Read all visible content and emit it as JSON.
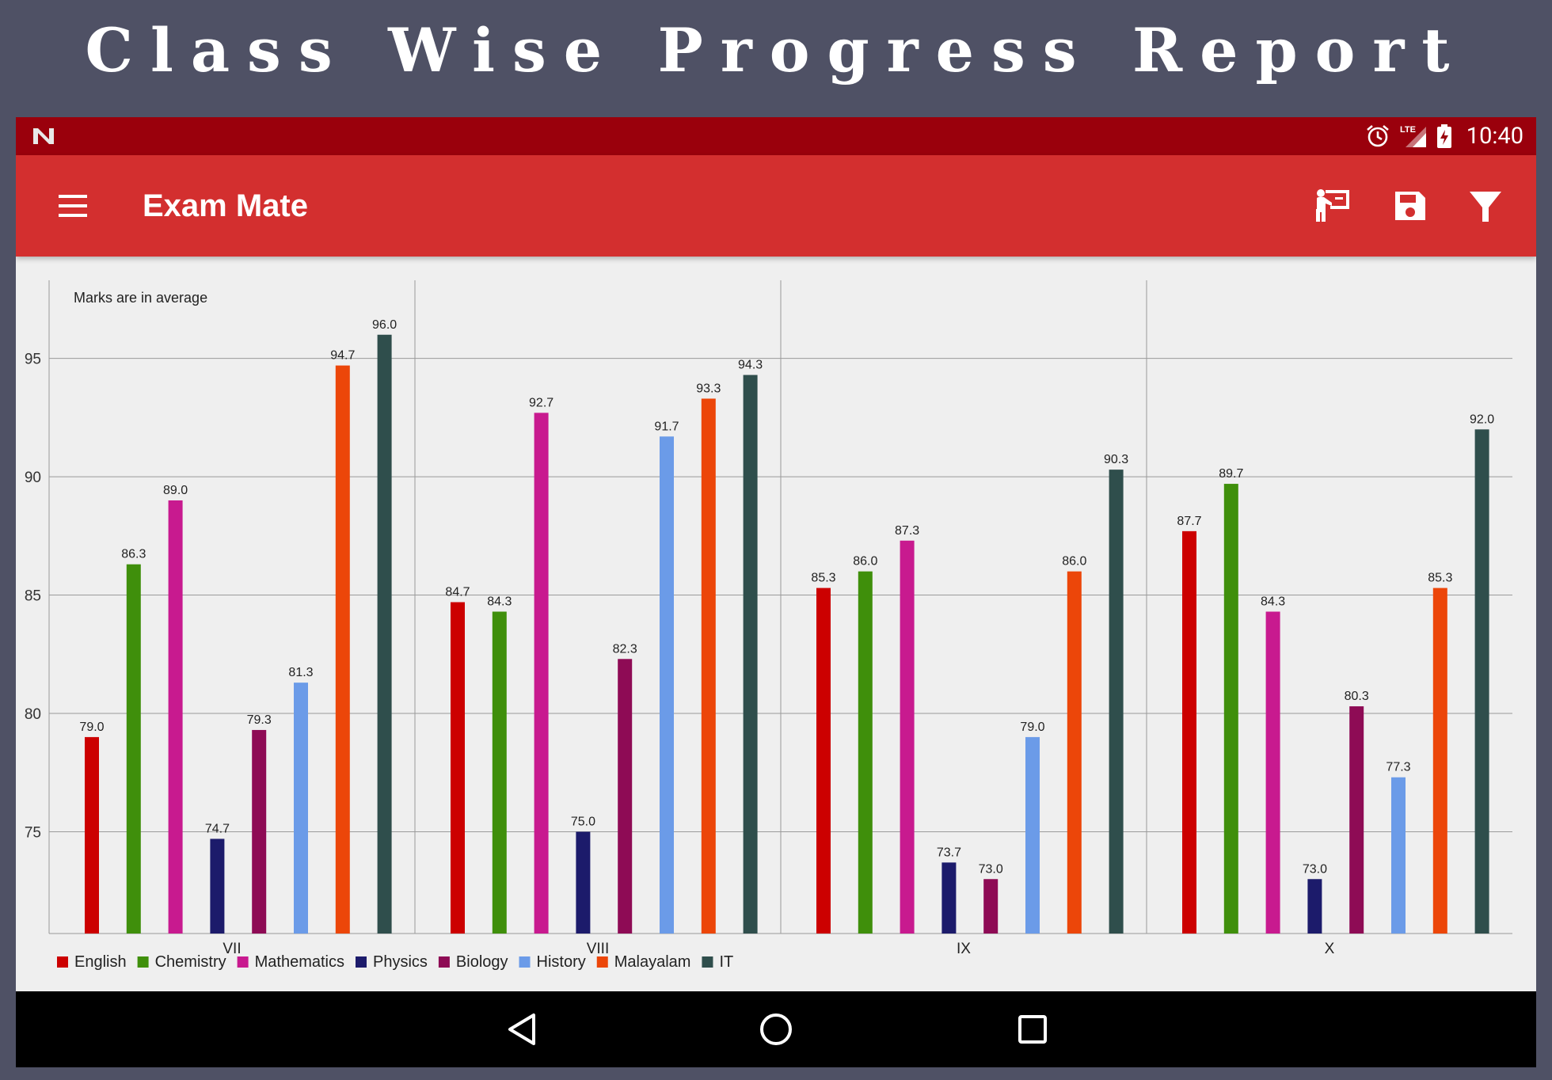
{
  "page_title": "Class Wise Progress Report",
  "status_bar": {
    "time": "10:40",
    "network": "LTE",
    "icons": [
      "n-logo-icon",
      "alarm-icon",
      "signal-icon",
      "battery-charging-icon"
    ]
  },
  "app_bar": {
    "title": "Exam Mate",
    "icons": [
      "menu-icon",
      "teacher-icon",
      "save-icon",
      "filter-icon"
    ]
  },
  "nav_bar": {
    "icons": [
      "back-icon",
      "home-icon",
      "recents-icon"
    ]
  },
  "chart_data": {
    "type": "bar",
    "annotation": "Marks are in average",
    "categories": [
      "VII",
      "VIII",
      "IX",
      "X"
    ],
    "series": [
      {
        "name": "English",
        "color": "#cc0000",
        "values": [
          79.0,
          84.7,
          85.3,
          87.7
        ]
      },
      {
        "name": "Chemistry",
        "color": "#3f8f0b",
        "values": [
          86.3,
          84.3,
          86.0,
          89.7
        ]
      },
      {
        "name": "Mathematics",
        "color": "#c81a8f",
        "values": [
          89.0,
          92.7,
          87.3,
          84.3
        ]
      },
      {
        "name": "Physics",
        "color": "#1c1b6b",
        "values": [
          74.7,
          75.0,
          73.7,
          73.0
        ]
      },
      {
        "name": "Biology",
        "color": "#8e0b55",
        "values": [
          79.3,
          82.3,
          73.0,
          80.3
        ]
      },
      {
        "name": "History",
        "color": "#6b9be8",
        "values": [
          81.3,
          91.7,
          79.0,
          77.3
        ]
      },
      {
        "name": "Malayalam",
        "color": "#ec4609",
        "values": [
          94.7,
          93.3,
          86.0,
          85.3
        ]
      },
      {
        "name": "IT",
        "color": "#2f4e4c",
        "values": [
          96.0,
          94.3,
          90.3,
          92.0
        ]
      }
    ],
    "y_ticks": [
      75,
      80,
      85,
      90,
      95
    ],
    "ylim": [
      70.7,
      98.3
    ],
    "grid": true,
    "legend_position": "bottom-left",
    "value_labels": true
  }
}
